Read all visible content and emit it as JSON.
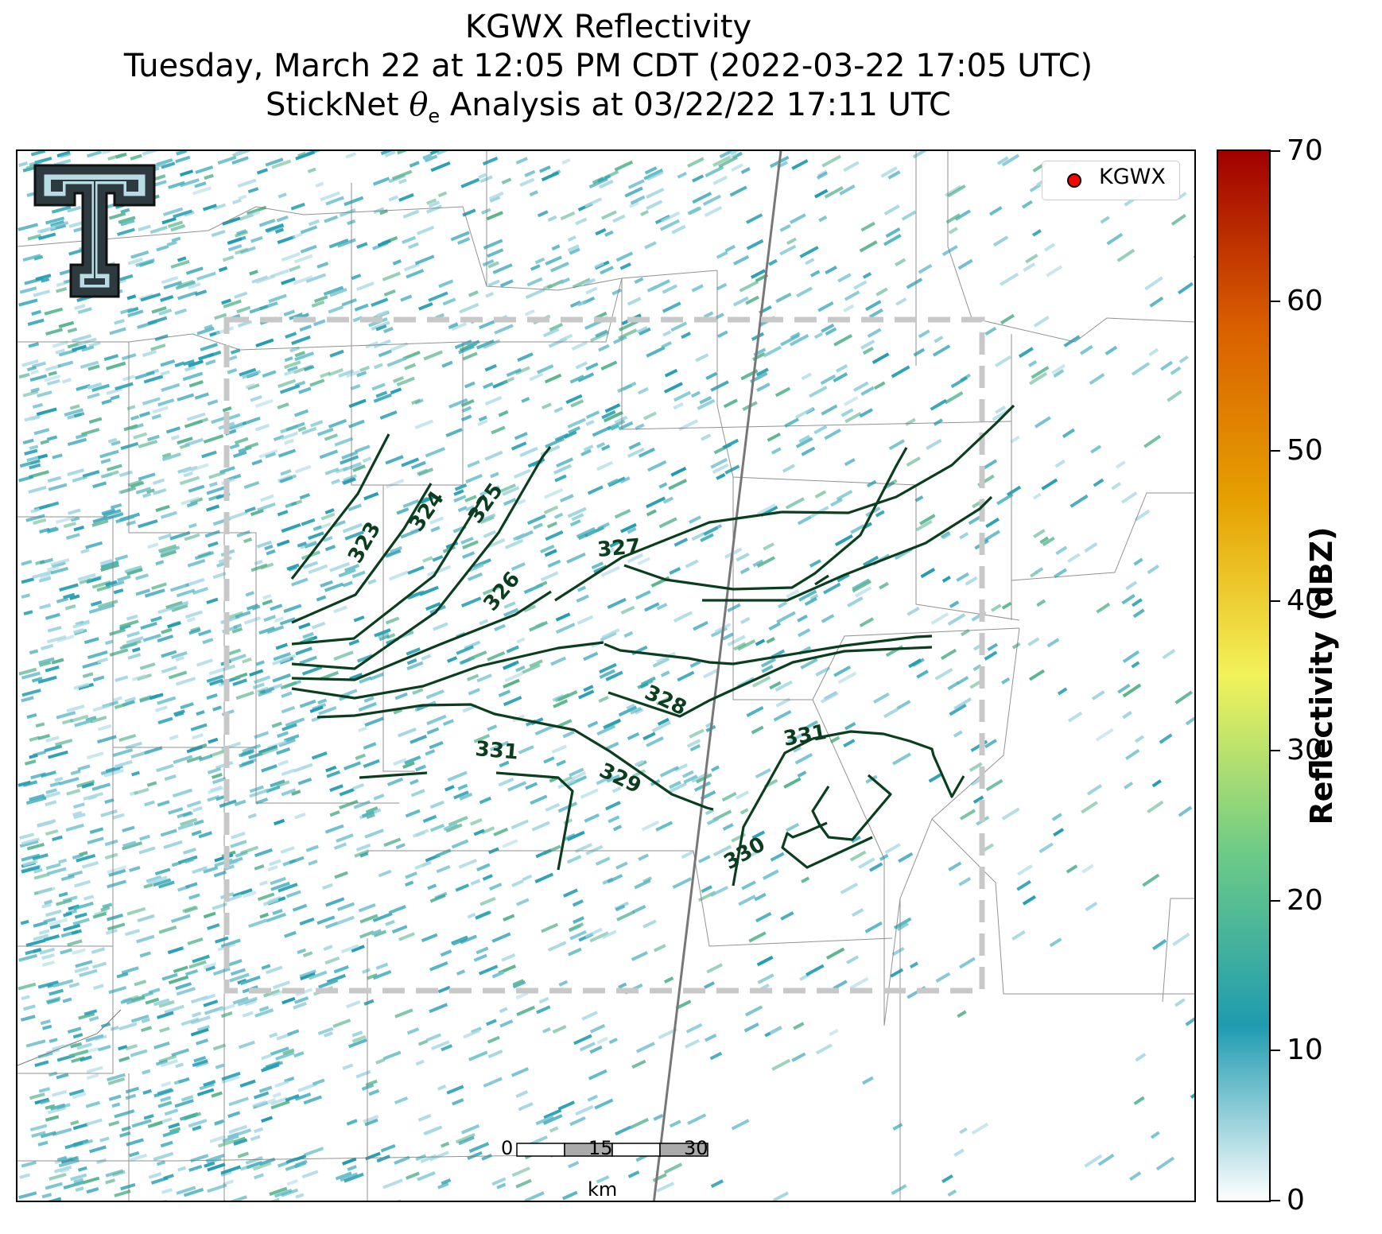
{
  "title": {
    "line1": "KGWX Reflectivity",
    "line2": "Tuesday, March 22 at 12:05 PM CDT (2022-03-22 17:05 UTC)",
    "line3_prefix": "StickNet ",
    "line3_theta": "θ",
    "line3_sub": "e",
    "line3_suffix": " Analysis at 03/22/22 17:11 UTC"
  },
  "legend": {
    "label": "KGWX",
    "marker_color": "#ff0000"
  },
  "colorbar": {
    "label": "Reflectivity (dBZ)",
    "ticks": [
      "0",
      "10",
      "20",
      "30",
      "40",
      "50",
      "60",
      "70"
    ],
    "range": [
      0,
      70
    ],
    "colors": [
      "#ffffff",
      "#1f9bb0",
      "#6ecb86",
      "#f2f25a",
      "#e6a000",
      "#d95f00",
      "#a00000"
    ]
  },
  "scale_bar": {
    "ticks": [
      "0",
      "15",
      "30"
    ],
    "unit": "km"
  },
  "contours": {
    "color": "#0b3d1f",
    "labels": [
      "323",
      "324",
      "325",
      "326",
      "327",
      "328",
      "329",
      "330",
      "331",
      "331"
    ]
  },
  "logo": {
    "icon": "texas-tech-double-t-icon"
  }
}
